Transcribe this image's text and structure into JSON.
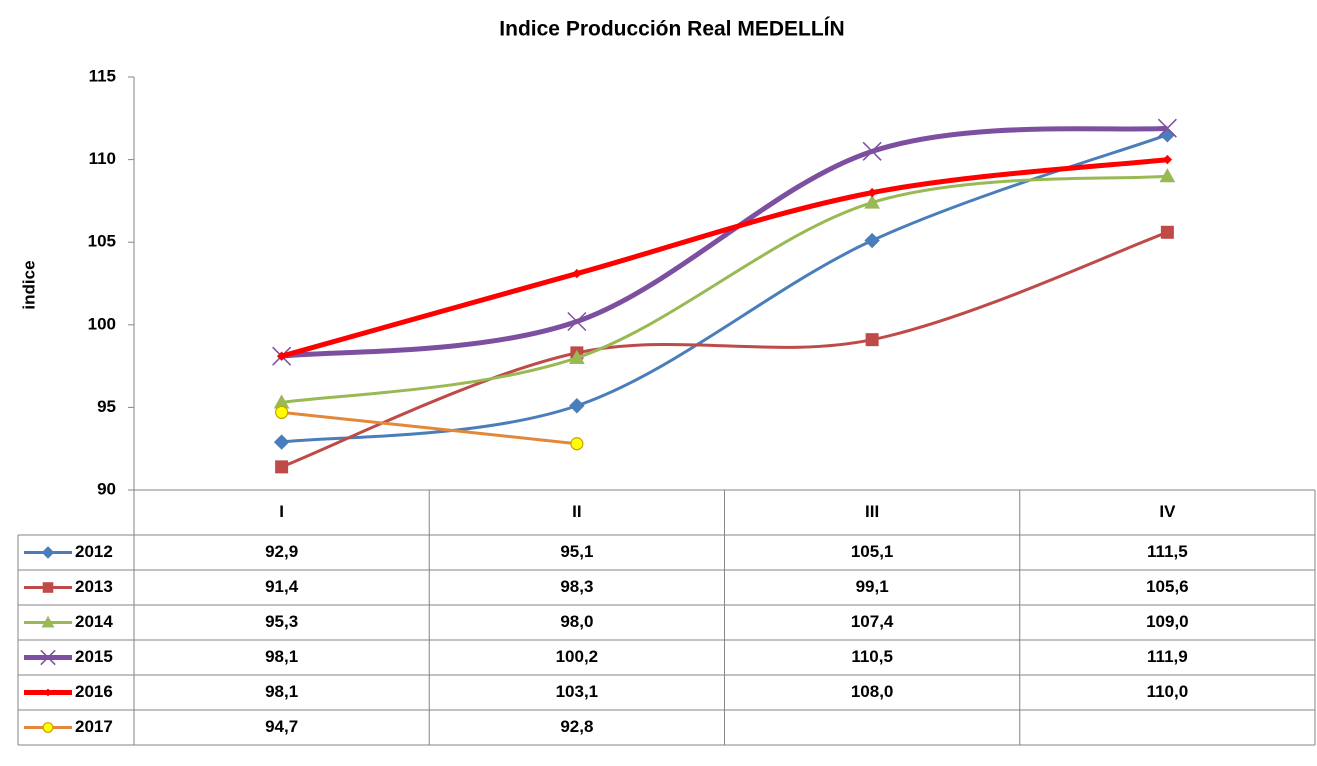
{
  "chart_data": {
    "type": "line",
    "title": "Indice Producción Real MEDELLÍN",
    "y_label": "indice",
    "categories": [
      "I",
      "II",
      "III",
      "IV"
    ],
    "ylim": [
      90,
      115
    ],
    "yticks": [
      90,
      95,
      100,
      105,
      110,
      115
    ],
    "smooth": true,
    "data_table": true,
    "series": [
      {
        "name": "2012",
        "color": "#4a7ebb",
        "marker": "diamond",
        "values": [
          92.9,
          95.1,
          105.1,
          111.5
        ],
        "value_labels": [
          "92,9",
          "95,1",
          "105,1",
          "111,5"
        ]
      },
      {
        "name": "2013",
        "color": "#be4b48",
        "marker": "square",
        "values": [
          91.4,
          98.3,
          99.1,
          105.6
        ],
        "value_labels": [
          "91,4",
          "98,3",
          "99,1",
          "105,6"
        ]
      },
      {
        "name": "2014",
        "color": "#98b954",
        "marker": "triangle",
        "values": [
          95.3,
          98.0,
          107.4,
          109.0
        ],
        "value_labels": [
          "95,3",
          "98,0",
          "107,4",
          "109,0"
        ]
      },
      {
        "name": "2015",
        "color": "#7d4fa0",
        "marker": "x",
        "values": [
          98.1,
          100.2,
          110.5,
          111.9
        ],
        "value_labels": [
          "98,1",
          "100,2",
          "110,5",
          "111,9"
        ]
      },
      {
        "name": "2016",
        "color": "#ff0000",
        "marker": "small-diamond",
        "values": [
          98.1,
          103.1,
          108.0,
          110.0
        ],
        "value_labels": [
          "98,1",
          "103,1",
          "108,0",
          "110,0"
        ]
      },
      {
        "name": "2017",
        "color": "#e3883a",
        "marker": "circle",
        "values": [
          94.7,
          92.8,
          null,
          null
        ],
        "value_labels": [
          "94,7",
          "92,8",
          null,
          null
        ]
      }
    ]
  }
}
